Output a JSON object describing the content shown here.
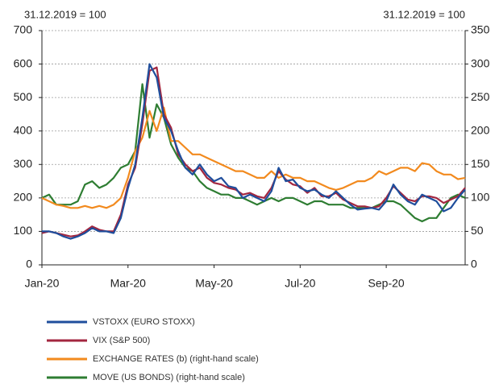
{
  "chart_data": {
    "type": "line",
    "subtitle": "31.12.2019 = 100",
    "y2_subtitle": "31.12.2019 = 100",
    "categories": [
      "Jan-20",
      null,
      null,
      null,
      null,
      null,
      null,
      null,
      null,
      null,
      null,
      null,
      "Mar-20",
      null,
      null,
      null,
      null,
      null,
      null,
      null,
      null,
      null,
      null,
      null,
      "May-20",
      null,
      null,
      null,
      null,
      null,
      null,
      null,
      null,
      null,
      null,
      null,
      "Jul-20",
      null,
      null,
      null,
      null,
      null,
      null,
      null,
      null,
      null,
      null,
      null,
      "Sep-20",
      null,
      null,
      null,
      null,
      null,
      null,
      null,
      null,
      null,
      null,
      null
    ],
    "ylim": [
      0,
      700
    ],
    "yticks": [
      0,
      100,
      200,
      300,
      400,
      500,
      600,
      700
    ],
    "y2lim": [
      0,
      350
    ],
    "y2ticks": [
      0,
      50,
      100,
      150,
      200,
      250,
      300,
      350
    ],
    "grid": true,
    "legend": "bottom",
    "series": [
      {
        "name": "VSTOXX (EURO STOXX)",
        "color": "#1f4e9c",
        "values": [
          100,
          100,
          95,
          85,
          78,
          85,
          95,
          110,
          100,
          100,
          95,
          140,
          230,
          300,
          440,
          600,
          560,
          440,
          400,
          340,
          290,
          270,
          300,
          270,
          250,
          260,
          235,
          230,
          200,
          210,
          200,
          190,
          220,
          290,
          250,
          255,
          230,
          220,
          225,
          210,
          200,
          220,
          200,
          180,
          165,
          168,
          170,
          165,
          190,
          240,
          210,
          190,
          180,
          210,
          200,
          190,
          160,
          170,
          200,
          225
        ]
      },
      {
        "name": "VIX (S&P 500)",
        "color": "#a3263f",
        "values": [
          95,
          100,
          95,
          90,
          85,
          88,
          100,
          115,
          105,
          100,
          100,
          150,
          240,
          290,
          420,
          580,
          590,
          450,
          410,
          330,
          300,
          280,
          290,
          260,
          245,
          240,
          230,
          225,
          210,
          215,
          205,
          200,
          230,
          280,
          255,
          240,
          235,
          215,
          230,
          205,
          205,
          215,
          195,
          185,
          175,
          175,
          170,
          175,
          200,
          235,
          215,
          195,
          190,
          205,
          205,
          200,
          185,
          195,
          205,
          230
        ]
      },
      {
        "name": "EXCHANGE RATES (b) (right-hand scale)",
        "color": "#f28a1e",
        "axis": "y2",
        "values": [
          100,
          95,
          90,
          88,
          85,
          85,
          88,
          85,
          88,
          85,
          90,
          100,
          130,
          170,
          190,
          230,
          200,
          235,
          185,
          185,
          175,
          165,
          165,
          160,
          155,
          150,
          145,
          140,
          140,
          135,
          130,
          130,
          140,
          130,
          135,
          130,
          130,
          125,
          125,
          120,
          115,
          112,
          115,
          120,
          125,
          125,
          130,
          140,
          135,
          140,
          145,
          145,
          140,
          152,
          150,
          140,
          135,
          135,
          128,
          130
        ]
      },
      {
        "name": "MOVE (US BONDS) (right-hand scale)",
        "color": "#2e7d32",
        "axis": "y2",
        "values": [
          100,
          105,
          90,
          90,
          90,
          95,
          120,
          125,
          115,
          120,
          130,
          145,
          150,
          170,
          270,
          190,
          240,
          220,
          180,
          160,
          145,
          140,
          125,
          115,
          110,
          105,
          105,
          100,
          100,
          95,
          90,
          95,
          100,
          95,
          100,
          100,
          95,
          90,
          95,
          95,
          90,
          90,
          90,
          85,
          85,
          85,
          85,
          90,
          95,
          95,
          90,
          80,
          70,
          65,
          70,
          70,
          85,
          100,
          105,
          100
        ]
      }
    ]
  }
}
